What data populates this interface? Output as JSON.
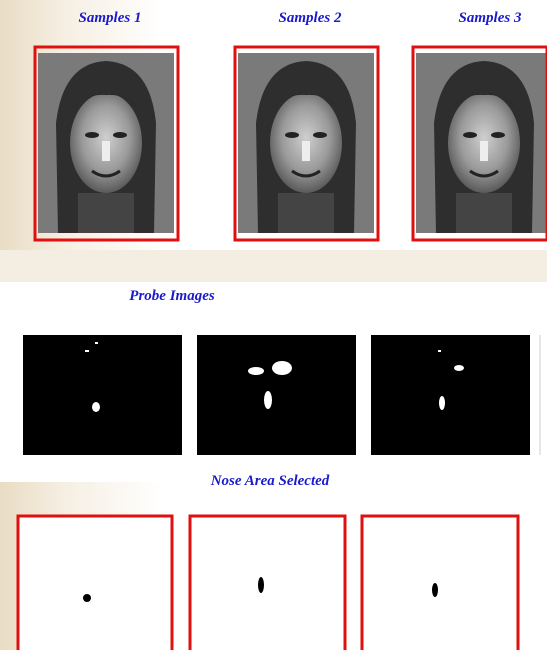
{
  "samples": {
    "labels": [
      "Samples 1",
      "Samples 2",
      "Samples 3"
    ]
  },
  "probe": {
    "title": "Probe Images"
  },
  "nose": {
    "title": "Nose Area Selected"
  }
}
